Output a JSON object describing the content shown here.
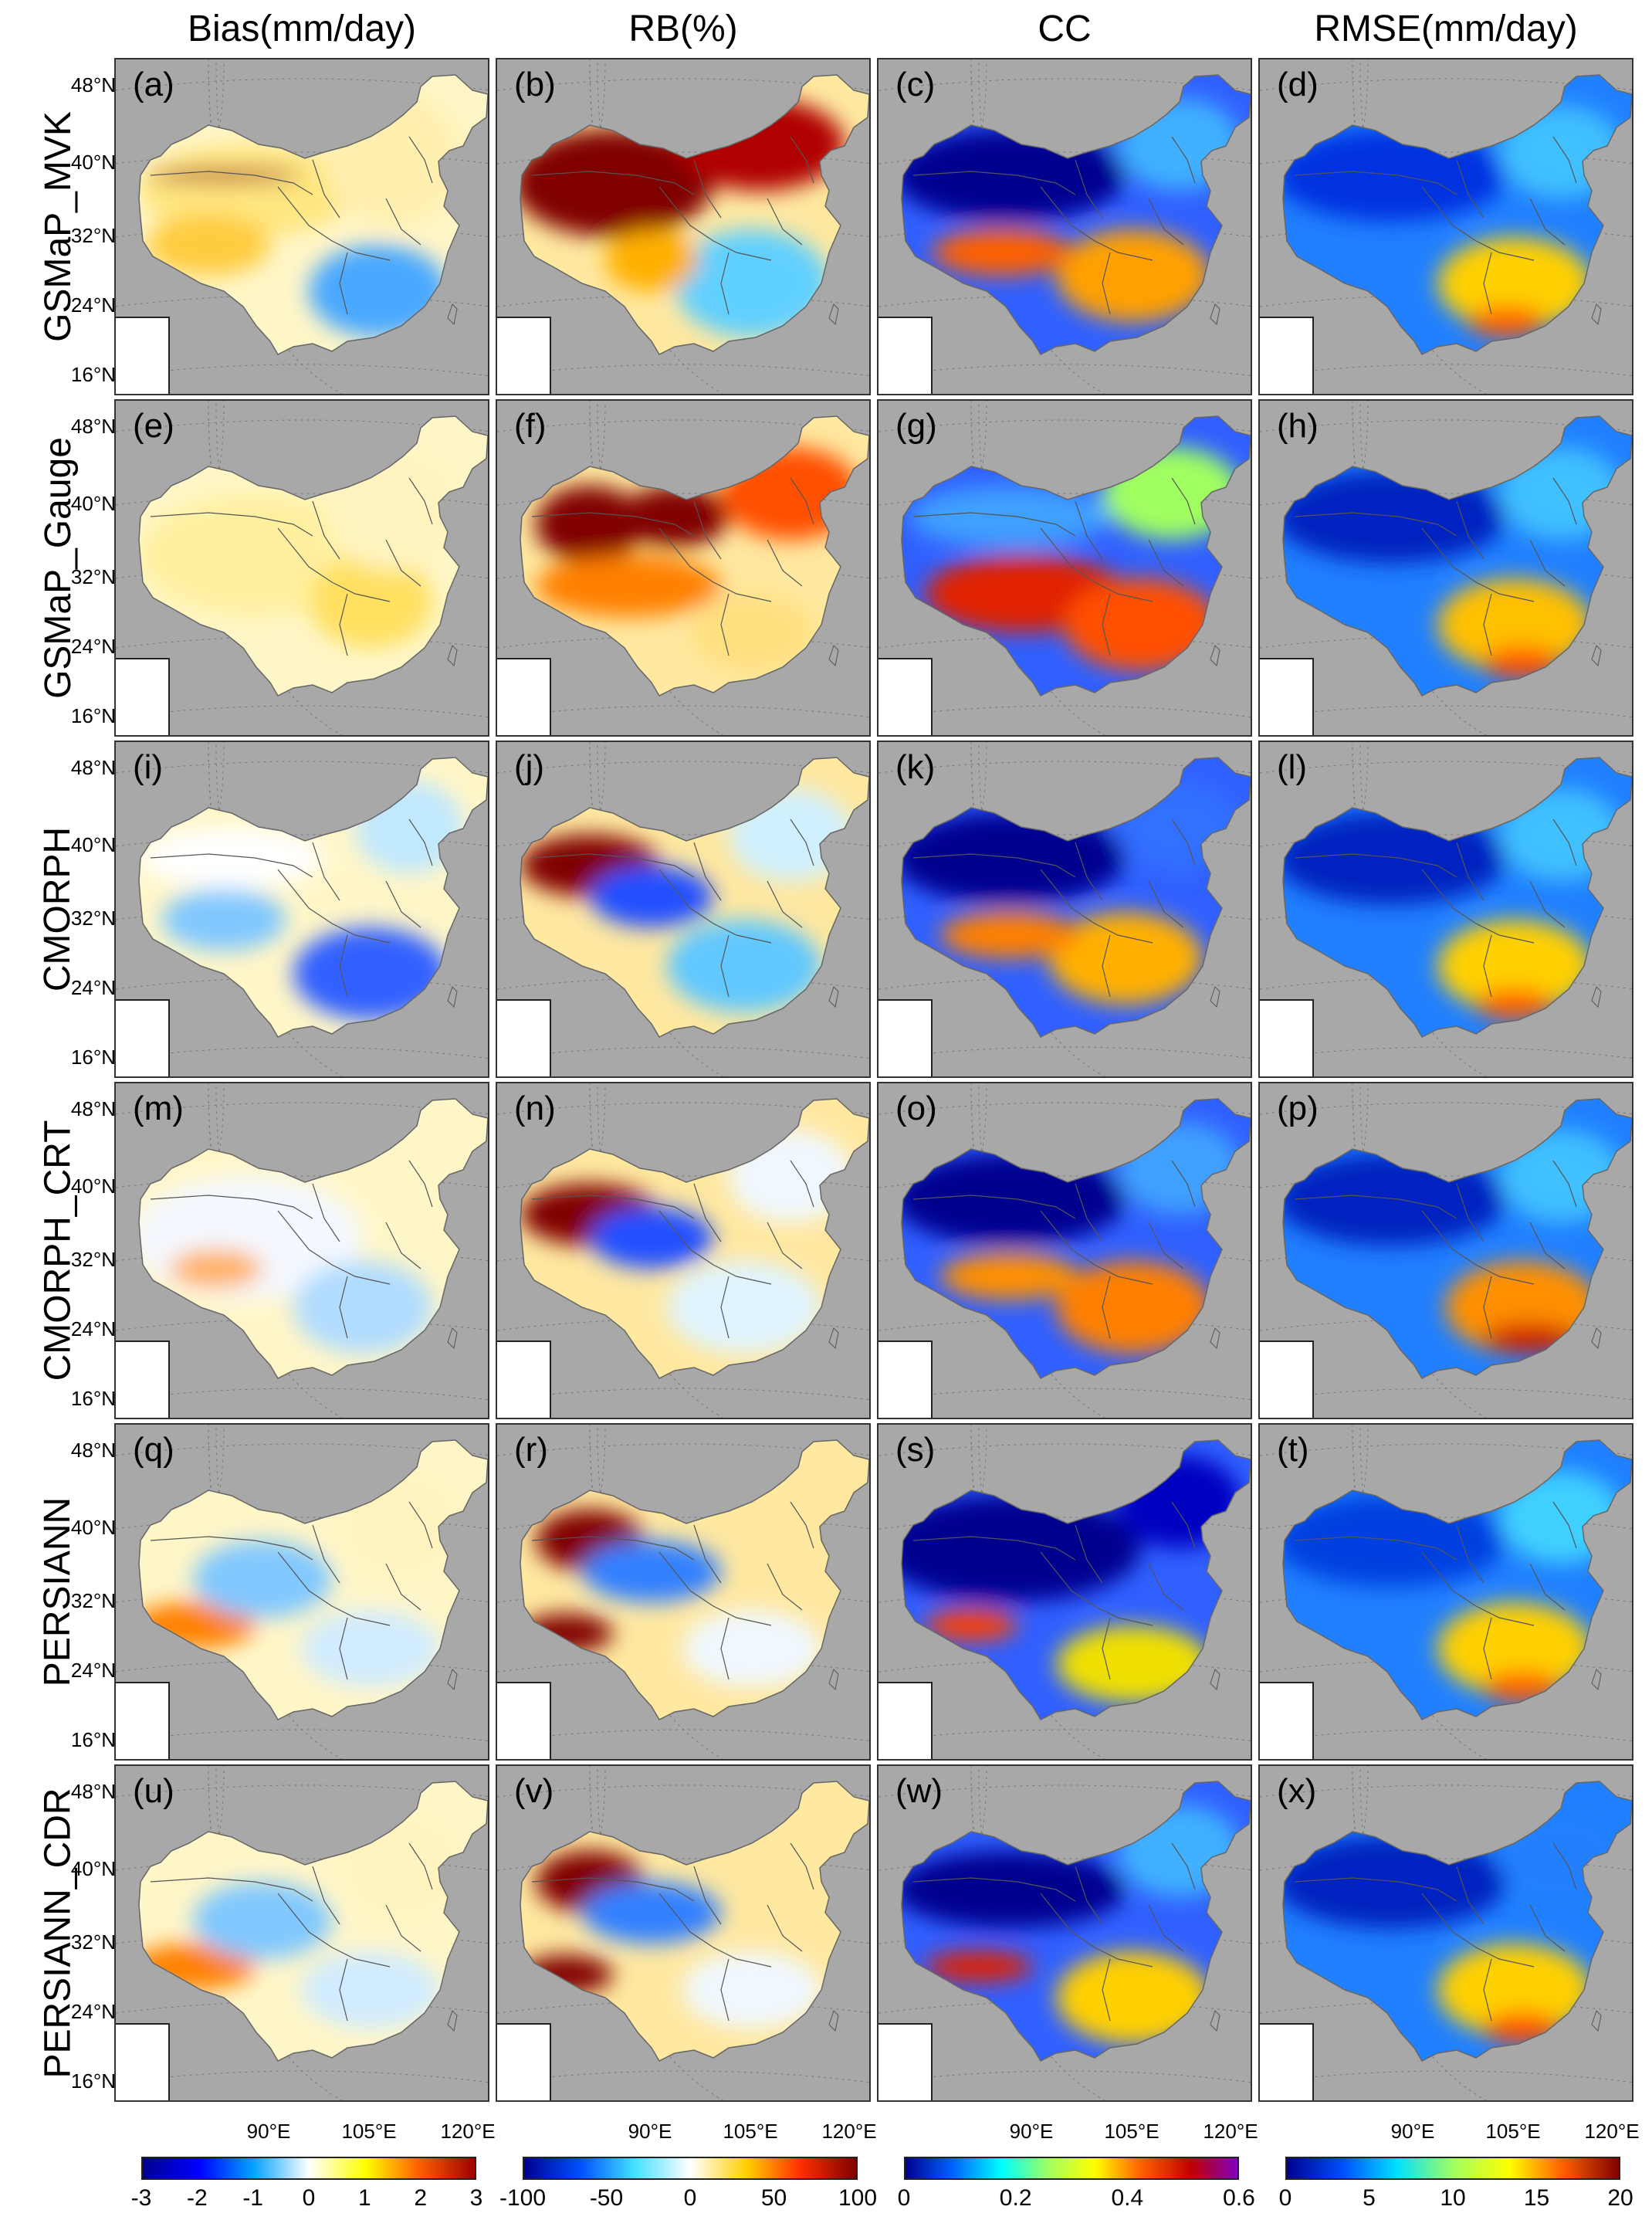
{
  "columns": [
    {
      "title": "Bias(mm/day)",
      "ticks": [
        "-3",
        "-2",
        "-1",
        "0",
        "1",
        "2",
        "3"
      ],
      "colormap": "bias"
    },
    {
      "title": "RB(%)",
      "ticks": [
        "-100",
        "-50",
        "0",
        "50",
        "100"
      ],
      "colormap": "rb"
    },
    {
      "title": "CC",
      "ticks": [
        "0",
        "0.2",
        "0.4",
        "0.6"
      ],
      "colormap": "cc"
    },
    {
      "title": "RMSE(mm/day)",
      "ticks": [
        "0",
        "5",
        "10",
        "15",
        "20"
      ],
      "colormap": "rmse"
    }
  ],
  "rows": [
    {
      "product": "GSMaP_MVK",
      "labels": [
        "(a)",
        "(b)",
        "(c)",
        "(d)"
      ]
    },
    {
      "product": "GSMaP_Gauge",
      "labels": [
        "(e)",
        "(f)",
        "(g)",
        "(h)"
      ]
    },
    {
      "product": "CMORPH",
      "labels": [
        "(i)",
        "(j)",
        "(k)",
        "(l)"
      ]
    },
    {
      "product": "CMORPH_CRT",
      "labels": [
        "(m)",
        "(n)",
        "(o)",
        "(p)"
      ]
    },
    {
      "product": "PERSIANN",
      "labels": [
        "(q)",
        "(r)",
        "(s)",
        "(t)"
      ]
    },
    {
      "product": "PERSIANN_CDR",
      "labels": [
        "(u)",
        "(v)",
        "(w)",
        "(x)"
      ]
    }
  ],
  "latitude_labels": [
    "48°N",
    "40°N",
    "32°N",
    "24°N",
    "16°N"
  ],
  "longitude_labels": [
    "90°E",
    "105°E",
    "120°E"
  ],
  "colors": {
    "background": "#a8a8a8",
    "bias": [
      "#00008f",
      "#0000ff",
      "#00a0ff",
      "#ffffff",
      "#ffff00",
      "#ff6000",
      "#a00000"
    ],
    "rb": [
      "#00008f",
      "#0050ff",
      "#40e0ff",
      "#ffffff",
      "#ffd000",
      "#ff3000",
      "#800000"
    ],
    "cc": [
      "#00008f",
      "#0060ff",
      "#00ffff",
      "#a0ff60",
      "#ffff00",
      "#ff6000",
      "#c00000",
      "#8000c0"
    ],
    "rmse": [
      "#00008f",
      "#0050ff",
      "#00e0ff",
      "#a0ff60",
      "#ffff00",
      "#ff6000",
      "#800000"
    ]
  }
}
